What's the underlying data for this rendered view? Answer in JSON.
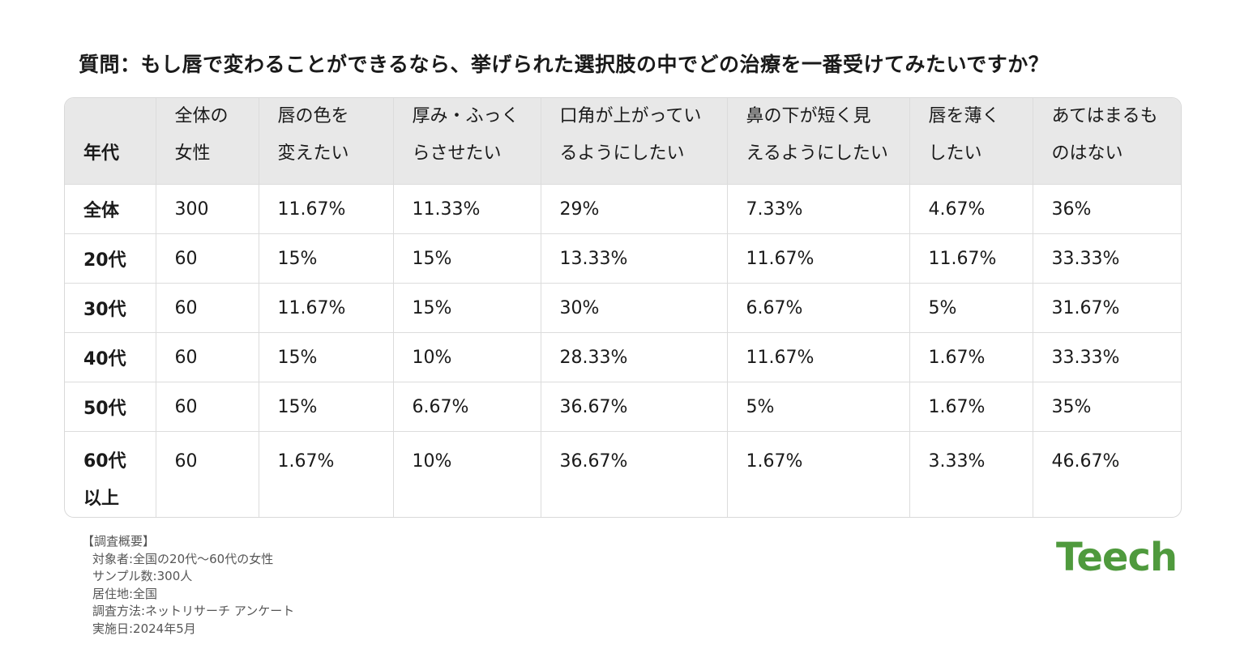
{
  "title": "質問：もし唇で変わることができるなら、挙げられた選択肢の中でどの治療を一番受けてみたいですか？",
  "chart_data": {
    "type": "table",
    "columns": [
      [
        "年代"
      ],
      [
        "全体の",
        "女性"
      ],
      [
        "唇の色を",
        "変えたい"
      ],
      [
        "厚み・ふっく",
        "らさせたい"
      ],
      [
        "口角が上がってい",
        "るようにしたい"
      ],
      [
        "鼻の下が短く見",
        "えるようにしたい"
      ],
      [
        "唇を薄く",
        "したい"
      ],
      [
        "あてはまるも",
        "のはない"
      ]
    ],
    "rows": [
      {
        "label": [
          "全体"
        ],
        "cells": [
          "300",
          "11.67%",
          "11.33%",
          "29%",
          "7.33%",
          "4.67%",
          "36%"
        ]
      },
      {
        "label": [
          "20代"
        ],
        "cells": [
          "60",
          "15%",
          "15%",
          "13.33%",
          "11.67%",
          "11.67%",
          "33.33%"
        ]
      },
      {
        "label": [
          "30代"
        ],
        "cells": [
          "60",
          "11.67%",
          "15%",
          "30%",
          "6.67%",
          "5%",
          "31.67%"
        ]
      },
      {
        "label": [
          "40代"
        ],
        "cells": [
          "60",
          "15%",
          "10%",
          "28.33%",
          "11.67%",
          "1.67%",
          "33.33%"
        ]
      },
      {
        "label": [
          "50代"
        ],
        "cells": [
          "60",
          "15%",
          "6.67%",
          "36.67%",
          "5%",
          "1.67%",
          "35%"
        ]
      },
      {
        "label": [
          "60代",
          "以上"
        ],
        "cells": [
          "60",
          "1.67%",
          "10%",
          "36.67%",
          "1.67%",
          "3.33%",
          "46.67%"
        ]
      }
    ]
  },
  "notes": {
    "heading": "【調査概要】",
    "lines": [
      "対象者:全国の20代〜60代の女性",
      "サンプル数:300人",
      "居住地:全国",
      "調査方法:ネットリサーチ アンケート",
      "実施日:2024年5月"
    ]
  },
  "logo": {
    "text": "Teech",
    "color": "#4f9a3d"
  }
}
